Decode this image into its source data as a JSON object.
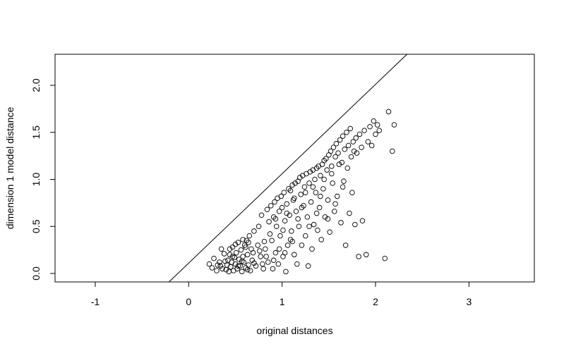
{
  "chart_data": {
    "type": "scatter",
    "title": "",
    "xlabel": "original distances",
    "ylabel": "dimension 1 model distance",
    "xlim": [
      -1.43,
      3.7
    ],
    "ylim": [
      -0.09,
      2.33
    ],
    "xticks": [
      -1,
      0,
      1,
      2,
      3
    ],
    "yticks": [
      0.0,
      0.5,
      1.0,
      1.5,
      2.0
    ],
    "xtick_labels": [
      "-1",
      "0",
      "1",
      "2",
      "3"
    ],
    "ytick_labels": [
      "0.0",
      "0.5",
      "1.0",
      "1.5",
      "2.0"
    ],
    "grid": false,
    "legend": "none",
    "marker": "open-circle",
    "reference_line": {
      "intercept": 0.11,
      "slope": 0.95
    },
    "series": [
      {
        "points": [
          [
            0.22,
            0.1
          ],
          [
            0.25,
            0.06
          ],
          [
            0.27,
            0.16
          ],
          [
            0.3,
            0.03
          ],
          [
            0.31,
            0.09
          ],
          [
            0.33,
            0.12
          ],
          [
            0.35,
            0.26
          ],
          [
            0.36,
            0.05
          ],
          [
            0.38,
            0.21
          ],
          [
            0.4,
            0.04
          ],
          [
            0.41,
            0.09
          ],
          [
            0.42,
            0.14
          ],
          [
            0.43,
            0.02
          ],
          [
            0.44,
            0.2
          ],
          [
            0.45,
            0.07
          ],
          [
            0.46,
            0.12
          ],
          [
            0.47,
            0.28
          ],
          [
            0.48,
            0.03
          ],
          [
            0.49,
            0.17
          ],
          [
            0.5,
            0.1
          ],
          [
            0.51,
            0.22
          ],
          [
            0.52,
            0.05
          ],
          [
            0.53,
            0.33
          ],
          [
            0.54,
            0.15
          ],
          [
            0.55,
            0.08
          ],
          [
            0.56,
            0.25
          ],
          [
            0.57,
            0.02
          ],
          [
            0.58,
            0.18
          ],
          [
            0.59,
            0.12
          ],
          [
            0.6,
            0.3
          ],
          [
            0.61,
            0.06
          ],
          [
            0.62,
            0.35
          ],
          [
            0.63,
            0.2
          ],
          [
            0.64,
            0.09
          ],
          [
            0.65,
            0.4
          ],
          [
            0.66,
            0.03
          ],
          [
            0.67,
            0.26
          ],
          [
            0.68,
            0.14
          ],
          [
            0.7,
            0.45
          ],
          [
            0.72,
            0.08
          ],
          [
            0.74,
            0.3
          ],
          [
            0.75,
            0.5
          ],
          [
            0.77,
            0.18
          ],
          [
            0.78,
            0.62
          ],
          [
            0.8,
            0.05
          ],
          [
            0.82,
            0.26
          ],
          [
            0.84,
            0.68
          ],
          [
            0.85,
            0.12
          ],
          [
            0.86,
            0.55
          ],
          [
            0.88,
            0.72
          ],
          [
            0.89,
            0.35
          ],
          [
            0.9,
            0.05
          ],
          [
            0.91,
            0.6
          ],
          [
            0.92,
            0.76
          ],
          [
            0.93,
            0.22
          ],
          [
            0.94,
            0.5
          ],
          [
            0.95,
            0.8
          ],
          [
            0.96,
            0.1
          ],
          [
            0.97,
            0.66
          ],
          [
            0.98,
            0.4
          ],
          [
            0.99,
            0.82
          ],
          [
            1.0,
            0.7
          ],
          [
            1.01,
            0.18
          ],
          [
            1.02,
            0.86
          ],
          [
            1.03,
            0.56
          ],
          [
            1.04,
            0.02
          ],
          [
            1.05,
            0.74
          ],
          [
            1.06,
            0.3
          ],
          [
            1.07,
            0.9
          ],
          [
            1.08,
            0.62
          ],
          [
            1.09,
            0.88
          ],
          [
            1.1,
            0.45
          ],
          [
            1.11,
            0.94
          ],
          [
            1.12,
            0.78
          ],
          [
            1.13,
            0.2
          ],
          [
            1.14,
            0.96
          ],
          [
            1.15,
            0.66
          ],
          [
            1.16,
            0.1
          ],
          [
            1.17,
            0.98
          ],
          [
            1.18,
            0.5
          ],
          [
            1.19,
            1.02
          ],
          [
            1.2,
            0.84
          ],
          [
            1.21,
            0.3
          ],
          [
            1.22,
            1.04
          ],
          [
            1.23,
            0.72
          ],
          [
            1.24,
            0.92
          ],
          [
            1.25,
            0.4
          ],
          [
            1.26,
            1.06
          ],
          [
            1.27,
            0.6
          ],
          [
            1.28,
            0.08
          ],
          [
            1.29,
            0.96
          ],
          [
            1.3,
            1.08
          ],
          [
            1.31,
            0.76
          ],
          [
            1.32,
            0.26
          ],
          [
            1.33,
            1.1
          ],
          [
            1.34,
            0.52
          ],
          [
            1.35,
            1.0
          ],
          [
            1.36,
            0.86
          ],
          [
            1.37,
            1.12
          ],
          [
            1.38,
            0.46
          ],
          [
            1.39,
            1.14
          ],
          [
            1.4,
            0.7
          ],
          [
            1.41,
            1.04
          ],
          [
            1.42,
            0.36
          ],
          [
            1.43,
            1.16
          ],
          [
            1.44,
            0.9
          ],
          [
            1.45,
            1.2
          ],
          [
            1.46,
            0.6
          ],
          [
            1.47,
            1.22
          ],
          [
            1.48,
            1.1
          ],
          [
            1.49,
            0.78
          ],
          [
            1.5,
            1.26
          ],
          [
            1.51,
            0.44
          ],
          [
            1.52,
            1.3
          ],
          [
            1.53,
            1.14
          ],
          [
            1.54,
            0.96
          ],
          [
            1.55,
            1.34
          ],
          [
            1.56,
            0.66
          ],
          [
            1.57,
            1.24
          ],
          [
            1.58,
            1.38
          ],
          [
            1.59,
            0.82
          ],
          [
            1.6,
            1.28
          ],
          [
            1.62,
            1.42
          ],
          [
            1.63,
            0.54
          ],
          [
            1.64,
            1.18
          ],
          [
            1.65,
            1.46
          ],
          [
            1.66,
            0.98
          ],
          [
            1.67,
            1.32
          ],
          [
            1.68,
            0.3
          ],
          [
            1.69,
            1.5
          ],
          [
            1.7,
            1.12
          ],
          [
            1.71,
            1.36
          ],
          [
            1.72,
            0.64
          ],
          [
            1.73,
            1.54
          ],
          [
            1.74,
            1.24
          ],
          [
            1.75,
            0.86
          ],
          [
            1.76,
            1.4
          ],
          [
            1.77,
            1.3
          ],
          [
            1.78,
            0.52
          ],
          [
            1.79,
            1.44
          ],
          [
            1.8,
            1.28
          ],
          [
            1.82,
            0.18
          ],
          [
            1.83,
            1.48
          ],
          [
            1.85,
            1.34
          ],
          [
            1.86,
            0.56
          ],
          [
            1.88,
            1.52
          ],
          [
            1.9,
            0.2
          ],
          [
            1.92,
            1.4
          ],
          [
            1.94,
            1.56
          ],
          [
            1.96,
            1.36
          ],
          [
            1.98,
            1.62
          ],
          [
            2.0,
            1.48
          ],
          [
            2.02,
            1.58
          ],
          [
            2.04,
            1.52
          ],
          [
            2.1,
            0.16
          ],
          [
            2.14,
            1.72
          ],
          [
            2.18,
            1.3
          ],
          [
            2.2,
            1.58
          ],
          [
            0.34,
            0.08
          ],
          [
            0.39,
            0.13
          ],
          [
            0.44,
            0.26
          ],
          [
            0.5,
            0.31
          ],
          [
            0.58,
            0.36
          ],
          [
            0.61,
            0.28
          ],
          [
            0.64,
            0.33
          ],
          [
            0.7,
            0.11
          ],
          [
            0.76,
            0.24
          ],
          [
            0.81,
            0.34
          ],
          [
            0.87,
            0.42
          ],
          [
            0.93,
            0.58
          ],
          [
            0.97,
            0.26
          ],
          [
            1.01,
            0.46
          ],
          [
            1.05,
            0.64
          ],
          [
            1.09,
            0.36
          ],
          [
            1.13,
            0.8
          ],
          [
            1.17,
            0.58
          ],
          [
            1.21,
            0.7
          ],
          [
            1.25,
            0.86
          ],
          [
            1.29,
            0.5
          ],
          [
            1.33,
            0.92
          ],
          [
            1.37,
            0.64
          ],
          [
            1.41,
            0.82
          ],
          [
            1.45,
            1.0
          ],
          [
            1.49,
            0.58
          ],
          [
            1.53,
            1.06
          ],
          [
            1.57,
            0.74
          ],
          [
            1.61,
            1.16
          ],
          [
            1.65,
            0.92
          ],
          [
            0.53,
            0.08
          ],
          [
            0.47,
            0.18
          ],
          [
            0.57,
            0.13
          ],
          [
            0.63,
            0.04
          ],
          [
            0.69,
            0.22
          ],
          [
            0.79,
            0.1
          ],
          [
            0.83,
            0.18
          ],
          [
            0.91,
            0.14
          ],
          [
            1.03,
            0.22
          ],
          [
            1.11,
            0.34
          ]
        ]
      }
    ]
  }
}
